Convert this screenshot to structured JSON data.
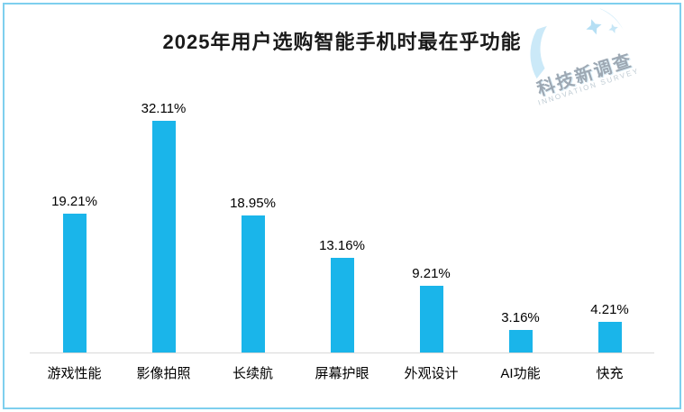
{
  "title": "2025年用户选购智能手机时最在乎功能",
  "watermark": {
    "name": "科技新调查",
    "subtitle": "INNOVATION SURVEY"
  },
  "colors": {
    "bar": "#1ab5ea",
    "frame_border": "#7ecfee",
    "axis_line": "#d8d8d8",
    "watermark_blue": "#c3e6f7"
  },
  "chart_data": {
    "type": "bar",
    "title": "2025年用户选购智能手机时最在乎功能",
    "categories": [
      "游戏性能",
      "影像拍照",
      "长续航",
      "屏幕护眼",
      "外观设计",
      "AI功能",
      "快充"
    ],
    "values": [
      19.21,
      32.11,
      18.95,
      13.16,
      9.21,
      3.16,
      4.21
    ],
    "value_labels": [
      "19.21%",
      "32.11%",
      "18.95%",
      "13.16%",
      "9.21%",
      "3.16%",
      "4.21%"
    ],
    "xlabel": "",
    "ylabel": "",
    "ylim": [
      0,
      35
    ],
    "grid": false,
    "legend": false,
    "bar_color": "#1ab5ea"
  }
}
